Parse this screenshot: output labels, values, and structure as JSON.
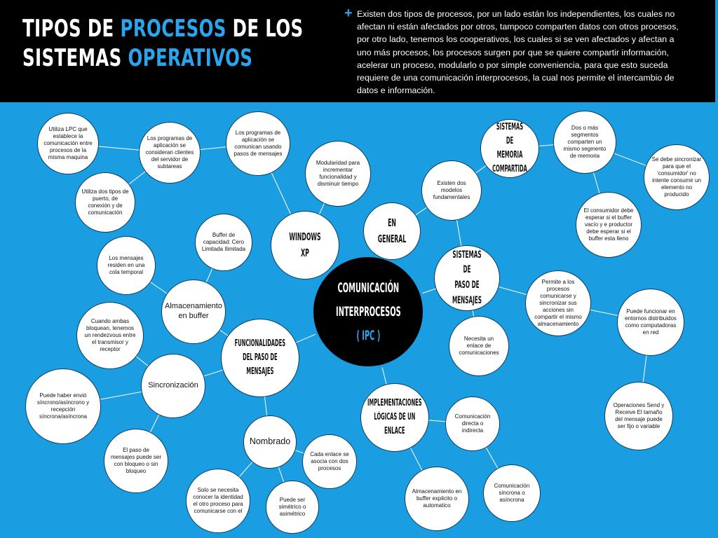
{
  "header": {
    "title_parts": [
      {
        "text": "TIPOS DE ",
        "hl": false
      },
      {
        "text": "PROCESOS",
        "hl": true
      },
      {
        "text": " DE LOS",
        "hl": false
      },
      {
        "br": true
      },
      {
        "text": "SISTEMAS ",
        "hl": false
      },
      {
        "text": "OPERATIVOS",
        "hl": true
      }
    ],
    "bullet": "+",
    "intro": "Existen dos tipos de procesos, por un lado están los independientes, los cuales no afectan ni están afectados por otros, tampoco comparten datos con otros procesos, por otro lado, tenemos los cooperativos, los cuales si se ven afectados y afectan a uno más procesos, los procesos surgen por que se quiere compartir información, acelerar un proceso, modularlo o por simple conveniencia, para que esto suceda requiere de una comunicación interprocesos, la cual nos permite el intercambio de datos e información."
  },
  "colors": {
    "background": "#1b9de2",
    "header": "#000000",
    "accent": "#2aa4ec",
    "node": "#ffffff",
    "center": "#000000"
  },
  "center": {
    "lines": [
      "COMUNICACIÓN",
      "INTERPROCESOS"
    ],
    "ipc": "( IPC )"
  },
  "hubs": [
    {
      "id": "windows",
      "lines": [
        "WINDOWS XP"
      ]
    },
    {
      "id": "general",
      "lines": [
        "EN GENERAL"
      ]
    },
    {
      "id": "memoria",
      "lines": [
        "SISTEMAS DE",
        "MEMORIA",
        "COMPARTIDA"
      ]
    },
    {
      "id": "paso",
      "lines": [
        "SISTEMAS DE",
        "PASO DE",
        "MENSAJES"
      ]
    },
    {
      "id": "func",
      "lines": [
        "FUNCIONALIDADES",
        "DEL PASO DE",
        "MENSAJES"
      ]
    },
    {
      "id": "impl",
      "lines": [
        "IMPLEMENTACIONES",
        "LÓGICAS DE UN",
        "ENLACE"
      ]
    }
  ],
  "leaves": [
    {
      "id": "lpc",
      "text": "Utiliza LPC que establece la comunicación entre procesos de la misma maquina"
    },
    {
      "id": "clientes",
      "text": "Los programas de aplicación se consideran clientes del servidor de subtareas"
    },
    {
      "id": "pasos_msg",
      "text": "Los programas de aplicación se comunican usando pasos de mensajes"
    },
    {
      "id": "puerto",
      "text": "Utiliza dos tipos de puerto, de conexión y de comunicación"
    },
    {
      "id": "modularidad",
      "text": "Modularidad para incrementar funcionalidad y disminuir tiempo"
    },
    {
      "id": "modelos",
      "text": "Existen dos modelos fundamentales"
    },
    {
      "id": "segmentos",
      "text": "Dos o más segmentos comparten un mismo segmento de memoria"
    },
    {
      "id": "sincronizar",
      "text": "Se debe sincronizar para que el 'consumidor' no intente consumir un elemento no producido"
    },
    {
      "id": "consumidor",
      "text": "El consumidor debe esperar si el buffer vacío y e productor debe esperar si el buffer esta lleno"
    },
    {
      "id": "permite",
      "text": "Permite a los procesos comunicarse y sincronizar sus acciones sin compartir el mismo almacenamiento"
    },
    {
      "id": "distribuidos",
      "text": "Puede funcionar en entornos distribuidos como computadoras en red"
    },
    {
      "id": "enlace",
      "text": "Necesita un enlace de comunicaciones"
    },
    {
      "id": "send",
      "text": "Operaciones Send y Receive El tamaño del mensaje puede ser fijo o variable"
    },
    {
      "id": "capacidad",
      "text": "Buffer de capacidad: Cero Limitada Ilimitada"
    },
    {
      "id": "cola",
      "text": "Los mensajes residen en una cola temporal"
    },
    {
      "id": "almacen",
      "text": "Almacenamiento en buffer"
    },
    {
      "id": "rendezvous",
      "text": "Cuando ambas bloquean, tenemos un rendezvous entre el transmisor y receptor"
    },
    {
      "id": "sincronizacion",
      "text": "Sincronización"
    },
    {
      "id": "envio",
      "text": "Puede haber envió síncrono/asíncrono y recepción síncrona/asíncrona"
    },
    {
      "id": "bloqueo",
      "text": "El paso de mensajes puede ser con bloqueo o sin bloqueo"
    },
    {
      "id": "nombrado",
      "text": "Nombrado"
    },
    {
      "id": "identidad",
      "text": "Solo se necesita conocer la identidad el otro proceso para comunicarse con el"
    },
    {
      "id": "simetrico",
      "text": "Puede ser simétrico o asimétrico"
    },
    {
      "id": "cada",
      "text": "Cada enlace se asocia con dos procesos"
    },
    {
      "id": "directa",
      "text": "Comunicación directa o indirecta"
    },
    {
      "id": "explicito",
      "text": "Almacenamiento en buffer explicito o automatico"
    },
    {
      "id": "sincrona",
      "text": "Comunicación síncrona o asíncrona"
    }
  ]
}
